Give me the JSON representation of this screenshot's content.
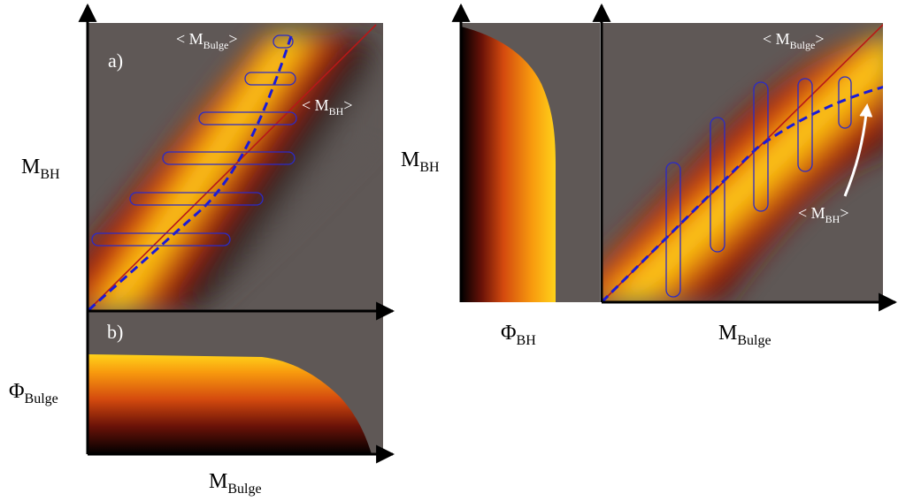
{
  "colors": {
    "background_gray": "#5f5856",
    "hot_black": "#000000",
    "hot_red": "#d41e10",
    "hot_orange": "#f89a0e",
    "hot_yellow": "#ffff10",
    "relation_line": "#b81818",
    "bias_curve": "#1a1ad8",
    "bin_outline": "#2a2ac8",
    "axis": "#000000",
    "annotation_text": "#ffffff",
    "arrow_white": "#ffffff"
  },
  "left_figure": {
    "panel_a": {
      "label": "a)",
      "y_axis": {
        "main": "M",
        "sub": "BH"
      },
      "annotation_bulge": {
        "open": "< M",
        "sub": "Bulge",
        "close": ">"
      },
      "annotation_bh": {
        "open": "< M",
        "sub": "BH",
        "close": ">"
      },
      "bin_count": 6
    },
    "panel_b": {
      "label": "b)",
      "y_axis": {
        "main": "Φ",
        "sub": "Bulge"
      },
      "x_axis": {
        "main": "M",
        "sub": "Bulge"
      }
    }
  },
  "right_figure": {
    "side_panel": {
      "x_axis": {
        "main": "Φ",
        "sub": "BH"
      }
    },
    "main_panel": {
      "y_axis": {
        "main": "M",
        "sub": "BH"
      },
      "x_axis": {
        "main": "M",
        "sub": "Bulge"
      },
      "annotation_bulge": {
        "open": "< M",
        "sub": "Bulge",
        "close": ">"
      },
      "annotation_bh": {
        "open": "< M",
        "sub": "BH",
        "close": ">"
      },
      "bin_count": 5
    }
  }
}
